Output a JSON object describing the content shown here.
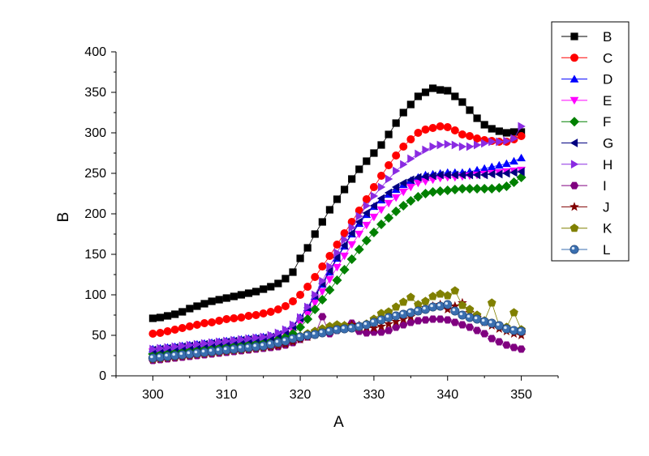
{
  "chart_data": {
    "type": "scatter",
    "xlabel": "A",
    "ylabel": "B",
    "xlim": [
      295,
      355
    ],
    "ylim": [
      0,
      400
    ],
    "xticks": [
      300,
      310,
      320,
      330,
      340,
      350
    ],
    "yticks": [
      0,
      50,
      100,
      150,
      200,
      250,
      300,
      350,
      400
    ],
    "grid": false,
    "legend_position": "top-right outside",
    "x": [
      300,
      301,
      302,
      303,
      304,
      305,
      306,
      307,
      308,
      309,
      310,
      311,
      312,
      313,
      314,
      315,
      316,
      317,
      318,
      319,
      320,
      321,
      322,
      323,
      324,
      325,
      326,
      327,
      328,
      329,
      330,
      331,
      332,
      333,
      334,
      335,
      336,
      337,
      338,
      339,
      340,
      341,
      342,
      343,
      344,
      345,
      346,
      347,
      348,
      349,
      350
    ],
    "series": [
      {
        "name": "B",
        "marker": "square",
        "color": "#000000",
        "values": [
          71,
          72,
          74,
          76,
          79,
          83,
          86,
          89,
          92,
          94,
          96,
          98,
          100,
          102,
          104,
          107,
          110,
          114,
          120,
          128,
          145,
          158,
          175,
          190,
          205,
          218,
          230,
          243,
          255,
          265,
          275,
          285,
          298,
          312,
          325,
          335,
          345,
          350,
          355,
          353,
          352,
          345,
          338,
          328,
          318,
          310,
          305,
          302,
          300,
          301,
          301
        ]
      },
      {
        "name": "C",
        "marker": "circle",
        "color": "#ff0000",
        "values": [
          52,
          53,
          55,
          57,
          59,
          61,
          63,
          65,
          66,
          68,
          70,
          71,
          72,
          74,
          75,
          77,
          79,
          82,
          86,
          92,
          100,
          110,
          122,
          135,
          148,
          162,
          176,
          190,
          204,
          218,
          233,
          247,
          260,
          272,
          283,
          292,
          300,
          304,
          306,
          308,
          307,
          303,
          298,
          296,
          293,
          291,
          290,
          289,
          289,
          292,
          296
        ]
      },
      {
        "name": "D",
        "marker": "triangle-up",
        "color": "#0000ff",
        "values": [
          33,
          34,
          35,
          36,
          37,
          38,
          39,
          40,
          41,
          42,
          43,
          44,
          45,
          46,
          47,
          48,
          49,
          52,
          56,
          62,
          72,
          84,
          98,
          113,
          128,
          145,
          160,
          175,
          188,
          199,
          209,
          217,
          224,
          230,
          236,
          241,
          245,
          248,
          249,
          250,
          251,
          251,
          251,
          252,
          254,
          256,
          258,
          260,
          262,
          265,
          269
        ]
      },
      {
        "name": "E",
        "marker": "triangle-down",
        "color": "#ff00ff",
        "values": [
          30,
          31,
          32,
          33,
          34,
          35,
          36,
          37,
          38,
          39,
          40,
          41,
          42,
          43,
          44,
          45,
          46,
          48,
          51,
          56,
          65,
          76,
          90,
          104,
          119,
          134,
          148,
          162,
          175,
          186,
          196,
          205,
          213,
          220,
          227,
          233,
          238,
          240,
          242,
          244,
          245,
          245,
          246,
          247,
          248,
          249,
          250,
          251,
          252,
          253,
          254
        ]
      },
      {
        "name": "F",
        "marker": "diamond",
        "color": "#008000",
        "values": [
          27,
          28,
          29,
          30,
          31,
          32,
          33,
          34,
          35,
          36,
          37,
          38,
          39,
          40,
          41,
          42,
          43,
          45,
          48,
          52,
          60,
          70,
          82,
          94,
          106,
          118,
          131,
          144,
          156,
          167,
          177,
          187,
          195,
          203,
          210,
          216,
          221,
          225,
          227,
          228,
          229,
          230,
          231,
          231,
          231,
          231,
          231,
          232,
          234,
          239,
          245
        ]
      },
      {
        "name": "G",
        "marker": "triangle-left",
        "color": "#000080",
        "values": [
          32,
          33,
          34,
          35,
          36,
          37,
          38,
          39,
          40,
          41,
          42,
          43,
          44,
          45,
          46,
          47,
          48,
          51,
          55,
          61,
          71,
          84,
          99,
          114,
          130,
          146,
          161,
          176,
          190,
          201,
          210,
          219,
          226,
          233,
          238,
          242,
          245,
          246,
          247,
          248,
          248,
          248,
          248,
          248,
          248,
          248,
          249,
          249,
          250,
          251,
          252
        ]
      },
      {
        "name": "H",
        "marker": "triangle-right",
        "color": "#8a2be2",
        "values": [
          33,
          34,
          35,
          36,
          37,
          38,
          39,
          40,
          41,
          42,
          43,
          44,
          45,
          46,
          47,
          48,
          50,
          53,
          57,
          63,
          72,
          85,
          100,
          117,
          135,
          152,
          168,
          183,
          197,
          210,
          222,
          233,
          243,
          253,
          261,
          268,
          274,
          279,
          283,
          285,
          286,
          285,
          283,
          283,
          285,
          287,
          289,
          289,
          290,
          293,
          308
        ]
      },
      {
        "name": "I",
        "marker": "hexagon",
        "color": "#800080",
        "values": [
          19,
          20,
          21,
          22,
          23,
          24,
          25,
          26,
          27,
          28,
          29,
          30,
          31,
          32,
          33,
          34,
          35,
          36,
          38,
          41,
          45,
          48,
          51,
          73,
          52,
          56,
          60,
          65,
          55,
          53,
          54,
          54,
          56,
          60,
          63,
          66,
          68,
          69,
          70,
          70,
          69,
          66,
          63,
          60,
          56,
          52,
          46,
          42,
          38,
          35,
          33
        ]
      },
      {
        "name": "J",
        "marker": "star",
        "color": "#800000",
        "values": [
          20,
          21,
          22,
          23,
          24,
          25,
          26,
          27,
          28,
          29,
          30,
          31,
          32,
          33,
          34,
          35,
          36,
          37,
          39,
          42,
          45,
          48,
          51,
          55,
          58,
          60,
          62,
          63,
          62,
          60,
          59,
          61,
          64,
          67,
          70,
          73,
          80,
          84,
          86,
          88,
          82,
          86,
          90,
          78,
          72,
          66,
          62,
          58,
          55,
          52,
          50
        ]
      },
      {
        "name": "K",
        "marker": "pentagon",
        "color": "#808000",
        "values": [
          21,
          22,
          23,
          24,
          25,
          26,
          27,
          28,
          29,
          30,
          31,
          32,
          33,
          34,
          35,
          36,
          38,
          40,
          43,
          46,
          49,
          52,
          55,
          58,
          61,
          63,
          62,
          60,
          60,
          64,
          70,
          77,
          79,
          85,
          91,
          97,
          88,
          92,
          98,
          101,
          99,
          105,
          87,
          82,
          75,
          68,
          90,
          62,
          60,
          78,
          57
        ]
      },
      {
        "name": "L",
        "marker": "ball",
        "color": "#3a6fb0",
        "values": [
          22,
          23,
          24,
          25,
          26,
          27,
          28,
          29,
          30,
          31,
          32,
          33,
          34,
          35,
          36,
          37,
          39,
          41,
          43,
          46,
          48,
          50,
          51,
          53,
          55,
          57,
          58,
          59,
          61,
          63,
          66,
          69,
          72,
          74,
          76,
          78,
          80,
          82,
          85,
          86,
          88,
          80,
          75,
          72,
          70,
          67,
          65,
          62,
          58,
          56,
          55
        ]
      }
    ]
  }
}
